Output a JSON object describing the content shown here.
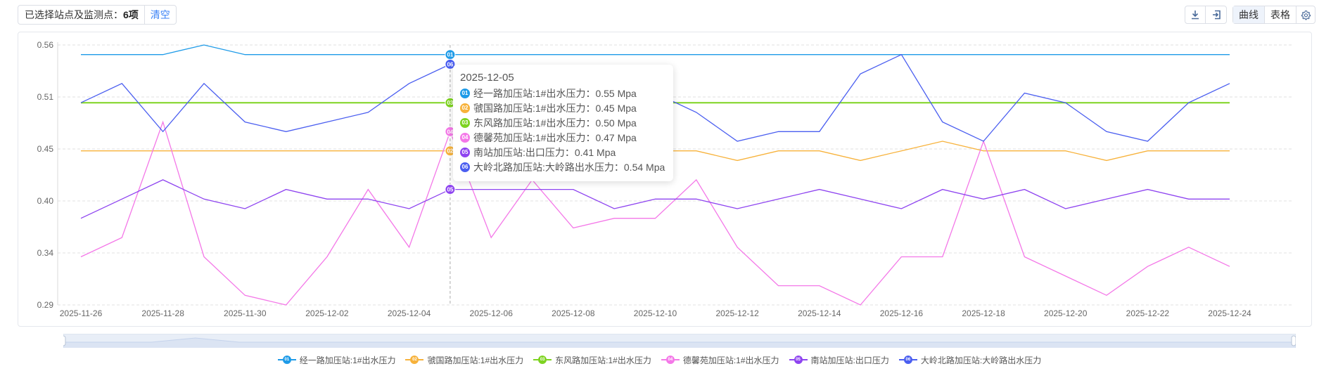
{
  "toolbar": {
    "selected_label": "已选择站点及监测点：",
    "selected_count": "6项",
    "clear_label": "清空",
    "download_icon": "download-icon",
    "export_icon": "export-icon",
    "view_curve": "曲线",
    "view_table": "表格",
    "settings_icon": "gear-icon"
  },
  "tooltip": {
    "date": "2025-12-05",
    "rows": [
      {
        "badge": "01",
        "label": "经一路加压站:1#出水压力：",
        "value": "0.55 Mpa"
      },
      {
        "badge": "02",
        "label": "虢国路加压站:1#出水压力：",
        "value": "0.45 Mpa"
      },
      {
        "badge": "03",
        "label": "东风路加压站:1#出水压力：",
        "value": "0.50 Mpa"
      },
      {
        "badge": "04",
        "label": "德馨苑加压站:1#出水压力：",
        "value": "0.47 Mpa"
      },
      {
        "badge": "05",
        "label": "南站加压站:出口压力：",
        "value": "0.41 Mpa"
      },
      {
        "badge": "06",
        "label": "大岭北路加压站:大岭路出水压力：",
        "value": "0.54 Mpa"
      }
    ]
  },
  "colors": {
    "s1": "#1e9be8",
    "s2": "#f7b23b",
    "s3": "#7ed321",
    "s4": "#f478e8",
    "s5": "#8e44f0",
    "s6": "#4a5ef0",
    "grid": "#e0e0e0",
    "axis_text": "#666666"
  },
  "chart_data": {
    "type": "line",
    "title": "",
    "xlabel": "",
    "ylabel": "",
    "unit": "Mpa",
    "ylim": [
      0.29,
      0.56
    ],
    "yticks": [
      "0.29",
      "0.34",
      "0.40",
      "0.45",
      "0.51",
      "0.56"
    ],
    "grid": true,
    "legend_position": "bottom",
    "x": [
      "2025-11-26",
      "2025-11-27",
      "2025-11-28",
      "2025-11-29",
      "2025-11-30",
      "2025-12-01",
      "2025-12-02",
      "2025-12-03",
      "2025-12-04",
      "2025-12-05",
      "2025-12-06",
      "2025-12-07",
      "2025-12-08",
      "2025-12-09",
      "2025-12-10",
      "2025-12-11",
      "2025-12-12",
      "2025-12-13",
      "2025-12-14",
      "2025-12-15",
      "2025-12-16",
      "2025-12-17",
      "2025-12-18",
      "2025-12-19",
      "2025-12-20",
      "2025-12-21",
      "2025-12-22",
      "2025-12-23",
      "2025-12-24"
    ],
    "xtick_labels": [
      "2025-11-26",
      "2025-11-28",
      "2025-11-30",
      "2025-12-02",
      "2025-12-04",
      "2025-12-06",
      "2025-12-08",
      "2025-12-10",
      "2025-12-12",
      "2025-12-14",
      "2025-12-16",
      "2025-12-18",
      "2025-12-20",
      "2025-12-22",
      "2025-12-24"
    ],
    "series": [
      {
        "id": "01",
        "name": "经一路加压站:1#出水压力",
        "color_key": "s1",
        "values": [
          0.55,
          0.55,
          0.55,
          0.56,
          0.55,
          0.55,
          0.55,
          0.55,
          0.55,
          0.55,
          0.55,
          0.55,
          0.55,
          0.55,
          0.55,
          0.55,
          0.55,
          0.55,
          0.55,
          0.55,
          0.55,
          0.55,
          0.55,
          0.55,
          0.55,
          0.55,
          0.55,
          0.55,
          0.55
        ]
      },
      {
        "id": "02",
        "name": "虢国路加压站:1#出水压力",
        "color_key": "s2",
        "values": [
          0.45,
          0.45,
          0.45,
          0.45,
          0.45,
          0.45,
          0.45,
          0.45,
          0.45,
          0.45,
          0.45,
          0.45,
          0.45,
          0.45,
          0.45,
          0.45,
          0.44,
          0.45,
          0.45,
          0.44,
          0.45,
          0.46,
          0.45,
          0.45,
          0.45,
          0.44,
          0.45,
          0.45,
          0.45
        ]
      },
      {
        "id": "03",
        "name": "东风路加压站:1#出水压力",
        "color_key": "s3",
        "values": [
          0.5,
          0.5,
          0.5,
          0.5,
          0.5,
          0.5,
          0.5,
          0.5,
          0.5,
          0.5,
          0.5,
          0.5,
          0.5,
          0.5,
          0.5,
          0.5,
          0.5,
          0.5,
          0.5,
          0.5,
          0.5,
          0.5,
          0.5,
          0.5,
          0.5,
          0.5,
          0.5,
          0.5,
          0.5
        ]
      },
      {
        "id": "04",
        "name": "德馨苑加压站:1#出水压力",
        "color_key": "s4",
        "values": [
          0.34,
          0.36,
          0.48,
          0.34,
          0.3,
          0.29,
          0.34,
          0.41,
          0.35,
          0.47,
          0.36,
          0.42,
          0.37,
          0.38,
          0.38,
          0.42,
          0.35,
          0.31,
          0.31,
          0.29,
          0.34,
          0.34,
          0.46,
          0.34,
          0.32,
          0.3,
          0.33,
          0.35,
          0.33
        ]
      },
      {
        "id": "05",
        "name": "南站加压站:出口压力",
        "color_key": "s5",
        "values": [
          0.38,
          0.4,
          0.42,
          0.4,
          0.39,
          0.41,
          0.4,
          0.4,
          0.39,
          0.41,
          0.41,
          0.41,
          0.41,
          0.39,
          0.4,
          0.4,
          0.39,
          0.4,
          0.41,
          0.4,
          0.39,
          0.41,
          0.4,
          0.41,
          0.39,
          0.4,
          0.41,
          0.4,
          0.4
        ]
      },
      {
        "id": "06",
        "name": "大岭北路加压站:大岭路出水压力",
        "color_key": "s6",
        "values": [
          0.5,
          0.52,
          0.47,
          0.52,
          0.48,
          0.47,
          0.48,
          0.49,
          0.52,
          0.54,
          0.52,
          0.53,
          0.52,
          0.52,
          0.51,
          0.49,
          0.46,
          0.47,
          0.47,
          0.53,
          0.55,
          0.48,
          0.46,
          0.51,
          0.5,
          0.47,
          0.46,
          0.5,
          0.52
        ]
      }
    ],
    "hover_index": 9
  }
}
